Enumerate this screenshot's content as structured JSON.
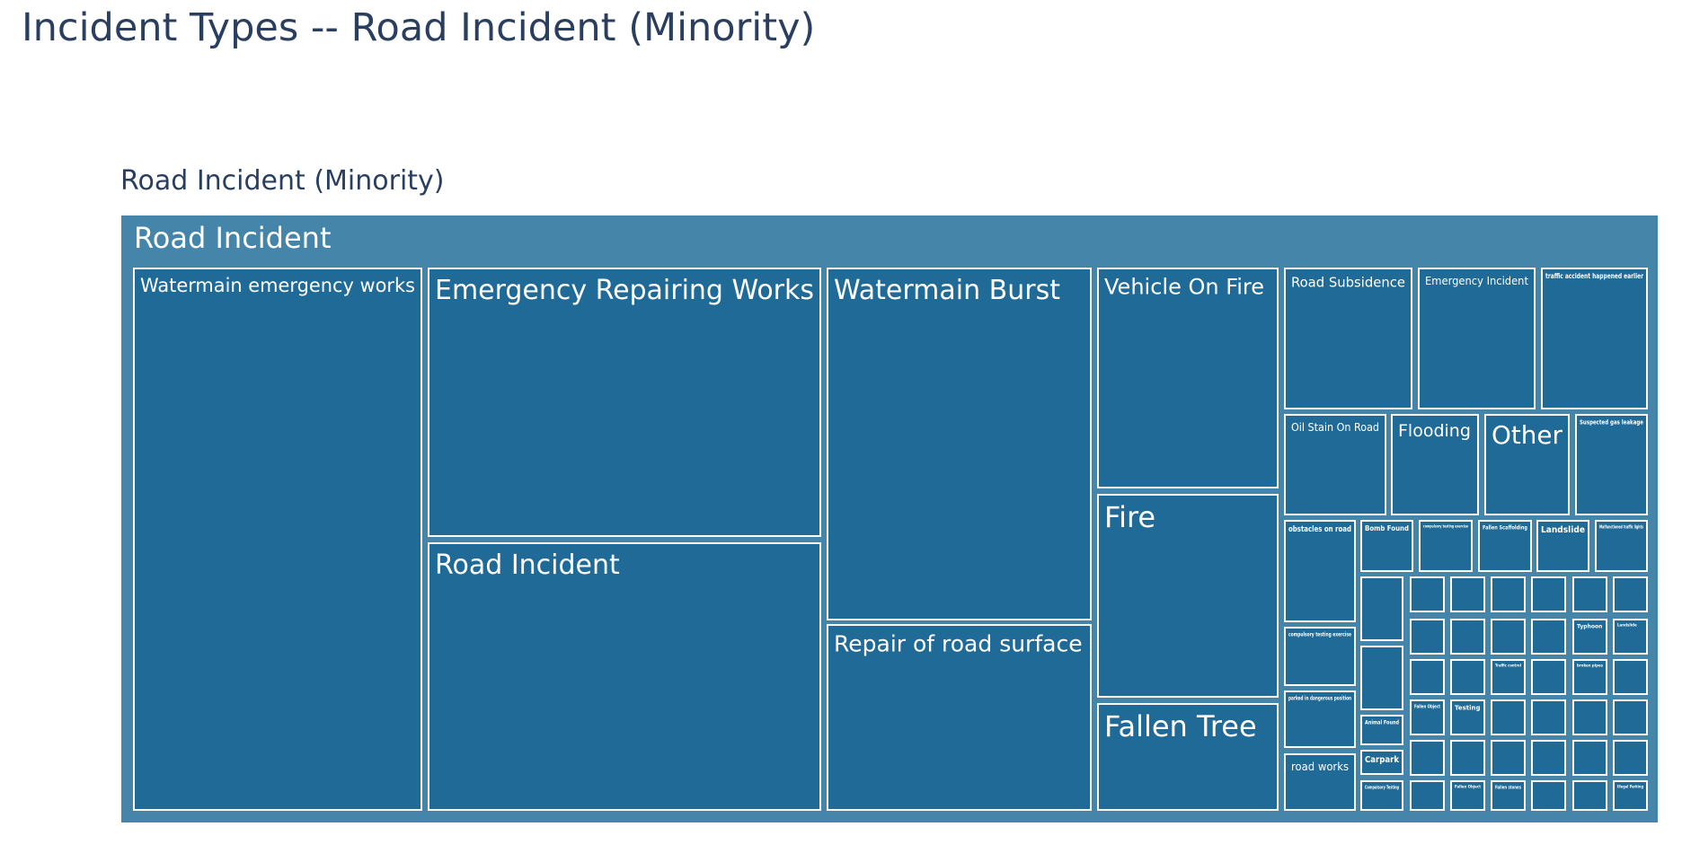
{
  "page": {
    "title": "Incident Types -- Road Incident (Minority)"
  },
  "chart_data": {
    "type": "treemap",
    "title": "Road Incident (Minority)",
    "colors": {
      "root": "#4685aa",
      "leaf": "#1f6a96",
      "border": "#ffffff",
      "label": "#ffffff",
      "title": "#2a3f5f"
    },
    "root": {
      "label": "Road Incident"
    },
    "leaves": [
      {
        "label": "Watermain emergency works",
        "value": 120
      },
      {
        "label": "Emergency Repairing Works",
        "value": 82
      },
      {
        "label": "Road Incident",
        "value": 79
      },
      {
        "label": "Watermain Burst",
        "value": 72
      },
      {
        "label": "Repair of road surface",
        "value": 40
      },
      {
        "label": "Vehicle On Fire",
        "value": 35
      },
      {
        "label": "Fire",
        "value": 33
      },
      {
        "label": "Fallen Tree",
        "value": 17
      },
      {
        "label": "Road Subsidence",
        "value": 10
      },
      {
        "label": "Emergency Incident",
        "value": 9
      },
      {
        "label": "traffic accident happened earlier",
        "value": 8
      },
      {
        "label": "Oil Stain On Road",
        "value": 6
      },
      {
        "label": "Flooding",
        "value": 5
      },
      {
        "label": "Other",
        "value": 5
      },
      {
        "label": "Suspected gas leakage",
        "value": 4
      },
      {
        "label": "obstacles on road",
        "value": 4
      },
      {
        "label": "Bomb Found",
        "value": 2
      },
      {
        "label": "compulsory testing exercise",
        "value": 2
      },
      {
        "label": "Fallen Scaffolding",
        "value": 2
      },
      {
        "label": "Landslide",
        "value": 2
      },
      {
        "label": "Malfunctioned traffic lights",
        "value": 2
      },
      {
        "label": "compulsory testing exercise",
        "value": 2
      },
      {
        "label": "parked in dangerous position",
        "value": 2
      },
      {
        "label": "road works",
        "value": 2
      },
      {
        "label": "Animal Found",
        "value": 1
      },
      {
        "label": "Carpark",
        "value": 1
      },
      {
        "label": "Compulsory Testing",
        "value": 1
      },
      {
        "label": "Fallen Object",
        "value": 1
      },
      {
        "label": "Testing",
        "value": 1
      },
      {
        "label": "Traffic control",
        "value": 1
      },
      {
        "label": "Typhoon",
        "value": 1
      },
      {
        "label": "Landslide",
        "value": 1
      },
      {
        "label": "Fallen stones",
        "value": 1
      },
      {
        "label": "broken pipes",
        "value": 1
      },
      {
        "label": "Fallen Object",
        "value": 1
      },
      {
        "label": "Illegal Parking",
        "value": 1
      }
    ]
  }
}
